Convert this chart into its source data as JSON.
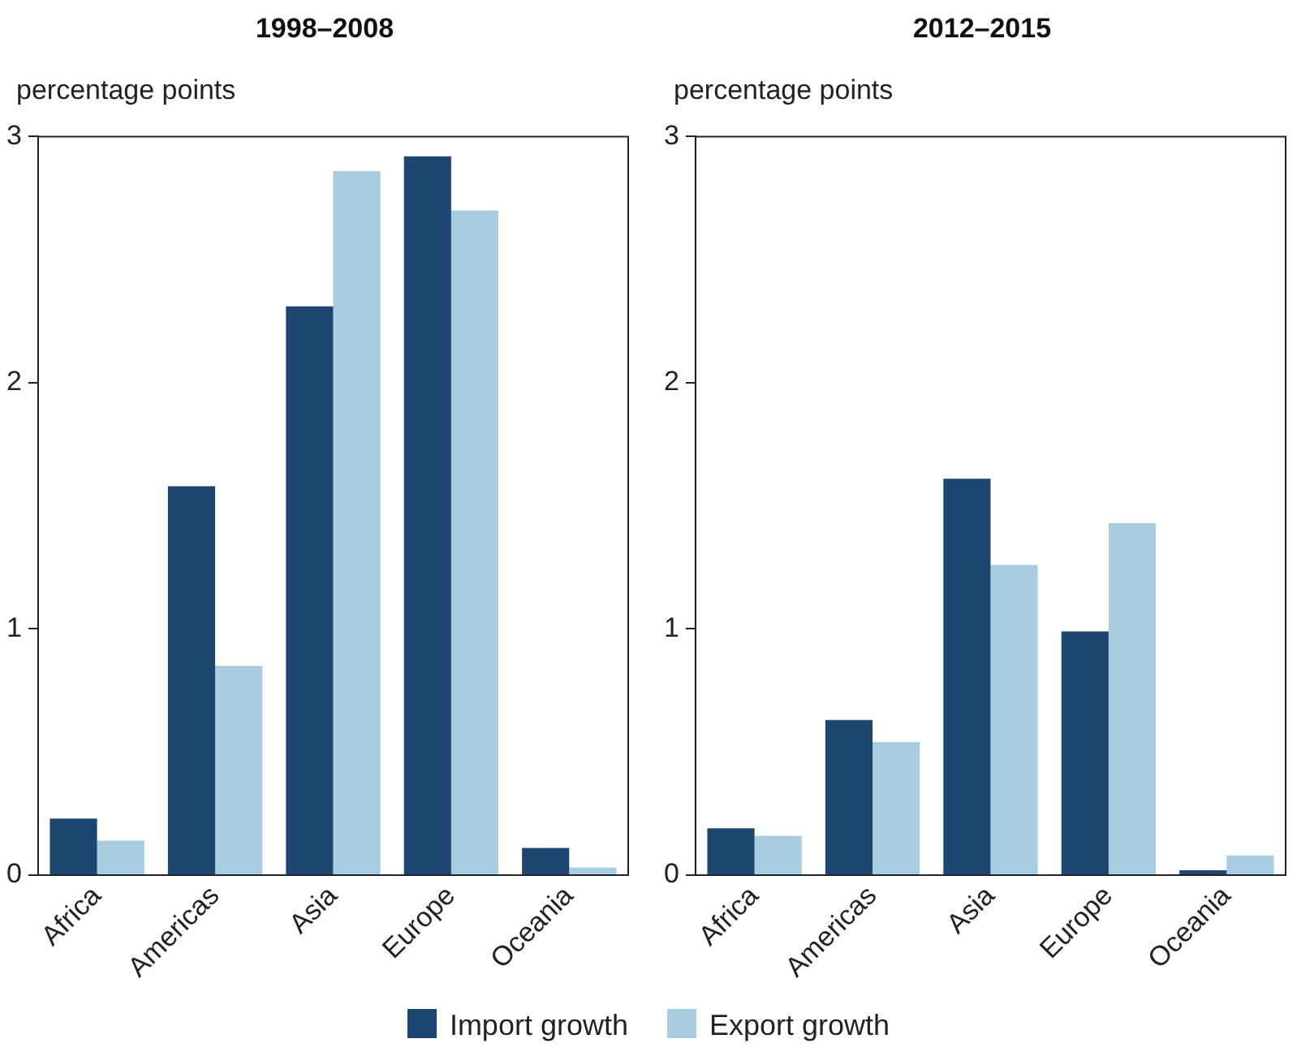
{
  "chart_data": [
    {
      "type": "bar",
      "title": "1998–2008",
      "ylabel": "percentage points",
      "categories": [
        "Africa",
        "Americas",
        "Asia",
        "Europe",
        "Oceania"
      ],
      "series": [
        {
          "name": "Import growth",
          "color": "#1d4670",
          "values": [
            0.23,
            1.58,
            2.31,
            2.92,
            0.11
          ]
        },
        {
          "name": "Export growth",
          "color": "#a9cde0",
          "values": [
            0.14,
            0.85,
            2.86,
            2.7,
            0.03
          ]
        }
      ],
      "ylim": [
        0,
        3
      ],
      "yticks": [
        0,
        1,
        2,
        3
      ],
      "grid": false,
      "legend": "bottom"
    },
    {
      "type": "bar",
      "title": "2012–2015",
      "ylabel": "percentage points",
      "categories": [
        "Africa",
        "Americas",
        "Asia",
        "Europe",
        "Oceania"
      ],
      "series": [
        {
          "color": "#1d4670",
          "values": [
            0.19,
            0.63,
            1.61,
            0.99,
            0.02
          ]
        },
        {
          "color": "#a9cde0",
          "values": [
            0.16,
            0.54,
            1.26,
            1.43,
            0.08
          ]
        }
      ],
      "ylim": [
        0,
        3
      ],
      "yticks": [
        0,
        1,
        2,
        3
      ],
      "grid": false
    }
  ]
}
